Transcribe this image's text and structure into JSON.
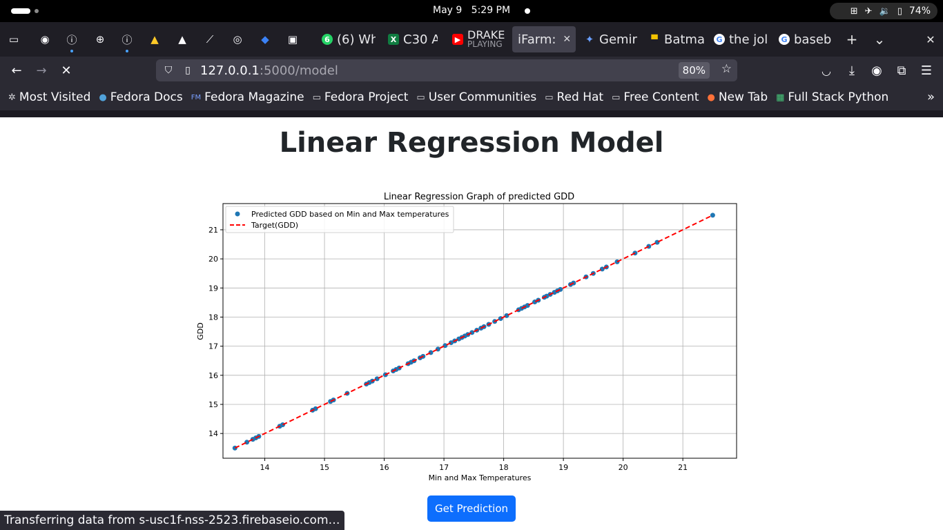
{
  "system": {
    "date": "May 9",
    "time": "5:29 PM",
    "battery": "74%"
  },
  "tabs": {
    "pinned": [
      "archive-icon",
      "github-icon",
      "info-icon",
      "globe-icon",
      "info-icon",
      "firebase-icon",
      "vercel-icon",
      "link-icon",
      "circle-icon",
      "blue-icon",
      "image-icon"
    ],
    "items": [
      {
        "label": "(6) Wh",
        "icon": "whatsapp-icon"
      },
      {
        "label": "C30 A",
        "icon": "excel-icon"
      },
      {
        "label": "DRAKE",
        "sub": "PLAYING",
        "icon": "youtube-icon"
      },
      {
        "label": "iFarm:",
        "icon": "",
        "active": true
      },
      {
        "label": "Gemir",
        "icon": "gemini-icon"
      },
      {
        "label": "Batma",
        "icon": "batman-icon"
      },
      {
        "label": "the jol",
        "icon": "google-icon"
      },
      {
        "label": "baseb",
        "icon": "google-icon"
      }
    ],
    "new_tab": "+",
    "list_tabs": "⌄",
    "close_window": "✕"
  },
  "navbar": {
    "url_host": "127.0.0.1",
    "url_rest": ":5000/model",
    "zoom": "80%"
  },
  "bookmarks": [
    {
      "label": "Most Visited",
      "icon": "gear-icon"
    },
    {
      "label": "Fedora Docs",
      "icon": "fedora-icon"
    },
    {
      "label": "Fedora Magazine",
      "icon": "fm-icon"
    },
    {
      "label": "Fedora Project",
      "icon": "folder-icon"
    },
    {
      "label": "User Communities",
      "icon": "folder-icon"
    },
    {
      "label": "Red Hat",
      "icon": "folder-icon"
    },
    {
      "label": "Free Content",
      "icon": "folder-icon"
    },
    {
      "label": "New Tab",
      "icon": "firefox-icon"
    },
    {
      "label": "Full Stack Python",
      "icon": "fsp-icon"
    }
  ],
  "page": {
    "title": "Linear Regression Model",
    "button_label": "Get Prediction"
  },
  "status_text": "Transferring data from s-usc1f-nss-2523.firebaseio.com…",
  "chart_data": {
    "type": "scatter",
    "title": "Linear Regression Graph of predicted GDD",
    "xlabel": "Min and Max Temperatures",
    "ylabel": "GDD",
    "xlim": [
      13.3,
      21.9
    ],
    "ylim": [
      13.15,
      21.9
    ],
    "xticks": [
      14,
      15,
      16,
      17,
      18,
      19,
      20,
      21
    ],
    "yticks": [
      14,
      15,
      16,
      17,
      18,
      19,
      20,
      21
    ],
    "grid": true,
    "legend_position": "top-left",
    "series": [
      {
        "name": "Predicted GDD based on Min and Max temperatures",
        "kind": "scatter",
        "color": "#1f77b4",
        "x": [
          13.5,
          13.7,
          13.8,
          13.85,
          13.9,
          14.25,
          14.3,
          14.8,
          14.85,
          15.1,
          15.15,
          15.38,
          15.7,
          15.75,
          15.8,
          15.88,
          16.02,
          16.15,
          16.2,
          16.25,
          16.4,
          16.45,
          16.5,
          16.6,
          16.65,
          16.78,
          16.9,
          17.02,
          17.12,
          17.18,
          17.25,
          17.3,
          17.35,
          17.4,
          17.47,
          17.55,
          17.62,
          17.67,
          17.75,
          17.85,
          17.95,
          18.05,
          18.25,
          18.3,
          18.35,
          18.4,
          18.52,
          18.58,
          18.68,
          18.72,
          18.78,
          18.85,
          18.9,
          18.95,
          19.12,
          19.17,
          19.38,
          19.5,
          19.65,
          19.72,
          19.9,
          20.2,
          20.43,
          20.57,
          21.5
        ],
        "y": [
          13.5,
          13.7,
          13.8,
          13.85,
          13.9,
          14.25,
          14.3,
          14.8,
          14.85,
          15.1,
          15.15,
          15.38,
          15.7,
          15.75,
          15.8,
          15.88,
          16.02,
          16.15,
          16.2,
          16.25,
          16.4,
          16.45,
          16.5,
          16.6,
          16.65,
          16.78,
          16.9,
          17.02,
          17.12,
          17.18,
          17.25,
          17.3,
          17.35,
          17.4,
          17.47,
          17.55,
          17.62,
          17.67,
          17.75,
          17.85,
          17.95,
          18.05,
          18.25,
          18.3,
          18.35,
          18.4,
          18.52,
          18.58,
          18.68,
          18.72,
          18.78,
          18.85,
          18.9,
          18.95,
          19.12,
          19.17,
          19.38,
          19.5,
          19.65,
          19.72,
          19.9,
          20.2,
          20.43,
          20.57,
          21.5
        ]
      },
      {
        "name": "Target(GDD)",
        "kind": "line",
        "color": "#ff0000",
        "dashed": true,
        "x": [
          13.5,
          21.5
        ],
        "y": [
          13.5,
          21.5
        ]
      }
    ]
  }
}
